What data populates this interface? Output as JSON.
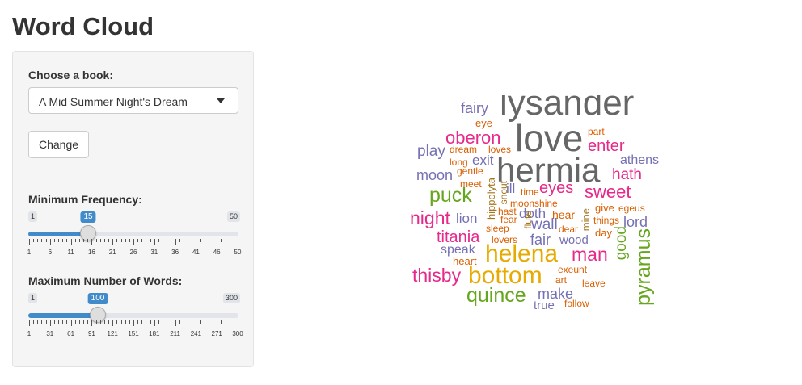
{
  "page": {
    "title": "Word Cloud"
  },
  "sidebar": {
    "book_label": "Choose a book:",
    "book_selected": "A Mid Summer Night's Dream",
    "change_button": "Change",
    "min_freq": {
      "label": "Minimum Frequency:",
      "min": "1",
      "max": "50",
      "value": "15",
      "min_num": 1,
      "max_num": 50,
      "value_num": 15,
      "ticks": [
        "1",
        "6",
        "11",
        "16",
        "21",
        "26",
        "31",
        "36",
        "41",
        "46",
        "50"
      ]
    },
    "max_words": {
      "label": "Maximum Number of Words:",
      "min": "1",
      "max": "300",
      "value": "100",
      "min_num": 1,
      "max_num": 300,
      "value_num": 100,
      "ticks": [
        "1",
        "31",
        "61",
        "91",
        "121",
        "151",
        "181",
        "211",
        "241",
        "271",
        "300"
      ]
    }
  },
  "colors": {
    "accent": "#428bca",
    "grey": "#666666",
    "purple": "#7570b3",
    "pink": "#e7298a",
    "orange": "#d95f02",
    "green": "#66a61e",
    "gold": "#e6ab02",
    "brown": "#a6761d"
  },
  "word_cloud": {
    "words": [
      {
        "text": "lysander",
        "color": "grey"
      },
      {
        "text": "love",
        "color": "grey"
      },
      {
        "text": "hermia",
        "color": "grey"
      },
      {
        "text": "fairy",
        "color": "purple"
      },
      {
        "text": "eye",
        "color": "orange"
      },
      {
        "text": "oberon",
        "color": "pink"
      },
      {
        "text": "play",
        "color": "purple"
      },
      {
        "text": "dream",
        "color": "orange"
      },
      {
        "text": "loves",
        "color": "orange"
      },
      {
        "text": "exit",
        "color": "purple"
      },
      {
        "text": "long",
        "color": "orange"
      },
      {
        "text": "moon",
        "color": "purple"
      },
      {
        "text": "gentle",
        "color": "orange"
      },
      {
        "text": "part",
        "color": "orange"
      },
      {
        "text": "enter",
        "color": "pink"
      },
      {
        "text": "athens",
        "color": "purple"
      },
      {
        "text": "hath",
        "color": "pink"
      },
      {
        "text": "puck",
        "color": "green"
      },
      {
        "text": "meet",
        "color": "orange"
      },
      {
        "text": "ill",
        "color": "purple"
      },
      {
        "text": "time",
        "color": "orange"
      },
      {
        "text": "eyes",
        "color": "pink"
      },
      {
        "text": "sweet",
        "color": "pink"
      },
      {
        "text": "hippolyta",
        "color": "brown"
      },
      {
        "text": "snout",
        "color": "brown"
      },
      {
        "text": "moonshine",
        "color": "orange"
      },
      {
        "text": "night",
        "color": "pink"
      },
      {
        "text": "lion",
        "color": "purple"
      },
      {
        "text": "hast",
        "color": "orange"
      },
      {
        "text": "doth",
        "color": "purple"
      },
      {
        "text": "hear",
        "color": "orange"
      },
      {
        "text": "give",
        "color": "orange"
      },
      {
        "text": "egeus",
        "color": "orange"
      },
      {
        "text": "fear",
        "color": "orange"
      },
      {
        "text": "things",
        "color": "orange"
      },
      {
        "text": "lord",
        "color": "purple"
      },
      {
        "text": "sleep",
        "color": "orange"
      },
      {
        "text": "wall",
        "color": "purple"
      },
      {
        "text": "dear",
        "color": "orange"
      },
      {
        "text": "mine",
        "color": "brown"
      },
      {
        "text": "titania",
        "color": "pink"
      },
      {
        "text": "flute",
        "color": "brown"
      },
      {
        "text": "day",
        "color": "orange"
      },
      {
        "text": "lovers",
        "color": "orange"
      },
      {
        "text": "fair",
        "color": "purple"
      },
      {
        "text": "wood",
        "color": "purple"
      },
      {
        "text": "good",
        "color": "green"
      },
      {
        "text": "speak",
        "color": "purple"
      },
      {
        "text": "helena",
        "color": "gold"
      },
      {
        "text": "man",
        "color": "pink"
      },
      {
        "text": "heart",
        "color": "orange"
      },
      {
        "text": "pyramus",
        "color": "green"
      },
      {
        "text": "exeunt",
        "color": "orange"
      },
      {
        "text": "thisby",
        "color": "pink"
      },
      {
        "text": "bottom",
        "color": "gold"
      },
      {
        "text": "art",
        "color": "orange"
      },
      {
        "text": "leave",
        "color": "orange"
      },
      {
        "text": "quince",
        "color": "green"
      },
      {
        "text": "make",
        "color": "purple"
      },
      {
        "text": "true",
        "color": "purple"
      },
      {
        "text": "follow",
        "color": "orange"
      }
    ]
  }
}
